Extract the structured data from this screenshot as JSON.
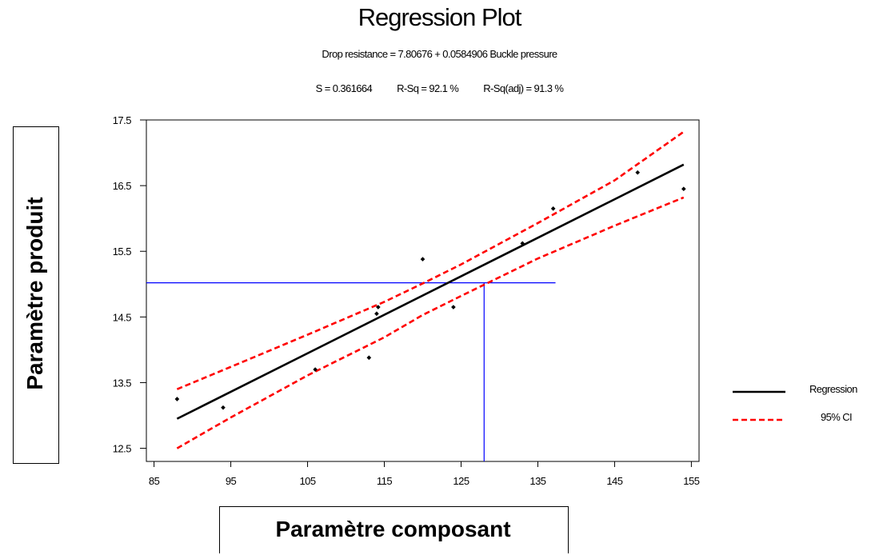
{
  "chart_data": {
    "type": "scatter",
    "title": "Regression Plot",
    "equation": "Drop resistance = 7.80676 + 0.0584906 Buckle pressure",
    "stats": {
      "s": "S = 0.361664",
      "rsq": "R-Sq = 92.1 %",
      "rsq_adj": "R-Sq(adj) = 91.3 %"
    },
    "xlabel": "Paramètre composant",
    "ylabel": "Paramètre produit",
    "xlim": [
      84,
      156
    ],
    "ylim": [
      12.3,
      17.5
    ],
    "x_ticks": [
      85,
      95,
      105,
      115,
      125,
      135,
      145,
      155
    ],
    "y_ticks": [
      12.5,
      13.5,
      14.5,
      15.5,
      16.5,
      17.5
    ],
    "y_tick_labels": [
      "12.5",
      "13.5",
      "14.5",
      "15.5",
      "16.5",
      "17.5"
    ],
    "points": [
      {
        "x": 88,
        "y": 13.25
      },
      {
        "x": 94,
        "y": 13.12
      },
      {
        "x": 106,
        "y": 13.7
      },
      {
        "x": 113,
        "y": 13.88
      },
      {
        "x": 114,
        "y": 14.55
      },
      {
        "x": 114.2,
        "y": 14.65
      },
      {
        "x": 120,
        "y": 15.38
      },
      {
        "x": 124,
        "y": 14.65
      },
      {
        "x": 133,
        "y": 15.62
      },
      {
        "x": 137,
        "y": 16.15
      },
      {
        "x": 148,
        "y": 16.7
      },
      {
        "x": 154,
        "y": 16.45
      }
    ],
    "series": [
      {
        "name": "Regression",
        "color": "#000000",
        "style": "solid",
        "x": [
          88,
          154
        ],
        "y": [
          12.95,
          16.82
        ]
      },
      {
        "name": "95% CI",
        "color": "#ff0000",
        "style": "dashed",
        "x": [
          88,
          95,
          105,
          115,
          120,
          125,
          135,
          145,
          154
        ],
        "y": [
          13.4,
          13.74,
          14.23,
          14.73,
          15.01,
          15.3,
          15.93,
          16.58,
          17.32
        ]
      },
      {
        "name": "",
        "color": "#ff0000",
        "style": "dashed",
        "x": [
          88,
          95,
          105,
          115,
          120,
          125,
          135,
          145,
          154
        ],
        "y": [
          12.5,
          12.97,
          13.61,
          14.19,
          14.53,
          14.82,
          15.39,
          15.89,
          16.32
        ]
      }
    ],
    "reference_lines": {
      "color": "#0000ff",
      "x": 128,
      "y": 15.02,
      "h_x_end": 137.3
    },
    "legend": [
      {
        "label": "Regression",
        "color": "#000000",
        "style": "solid"
      },
      {
        "label": "95% CI",
        "color": "#ff0000",
        "style": "dashed"
      }
    ],
    "legend_position": "right",
    "grid": false
  }
}
